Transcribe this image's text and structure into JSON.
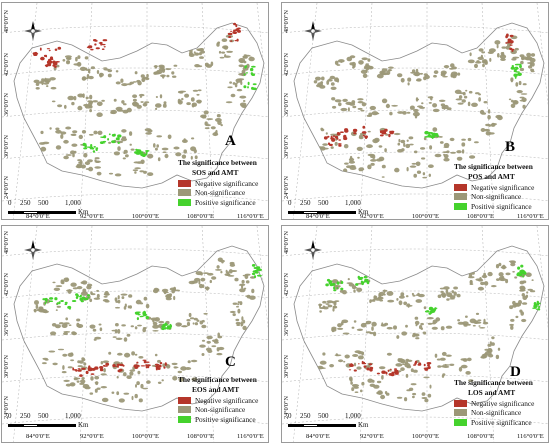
{
  "colors": {
    "negative": "#b5362a",
    "non": "#9c9878",
    "positive": "#45d22d",
    "grid": "#b0b0b0",
    "outline": "#8a8a8a"
  },
  "scale": {
    "labels": [
      "0",
      "250",
      "500",
      "1,000"
    ],
    "unit": "Km"
  },
  "compass_label": "N",
  "x_ticks": [
    "84°0'0\"E",
    "92°0'0\"E",
    "100°0'0\"E",
    "108°0'0\"E",
    "116°0'0\"E"
  ],
  "y_ticks": [
    "24°0'0\"N",
    "30°0'0\"N",
    "36°0'0\"N",
    "42°0'0\"N",
    "48°0'0\"N"
  ],
  "panels": [
    {
      "letter": "A",
      "title_line1": "The significance between",
      "title_line2": "SOS and AMT",
      "legend": [
        "Negative significance",
        "Non-significance",
        "Positive significance"
      ]
    },
    {
      "letter": "B",
      "title_line1": "The significance between",
      "title_line2": "POS and AMT",
      "legend": [
        "Negative significance",
        "Non-significance",
        "Positive significance"
      ]
    },
    {
      "letter": "C",
      "title_line1": "The significance between",
      "title_line2": "EOS and AMT",
      "legend": [
        "Negative significance",
        "Non-significance",
        "Positive significance"
      ]
    },
    {
      "letter": "D",
      "title_line1": "The significance between",
      "title_line2": "LOS and AMT",
      "legend": [
        "Negative significance",
        "Non-significance",
        "Positive significance"
      ]
    }
  ]
}
